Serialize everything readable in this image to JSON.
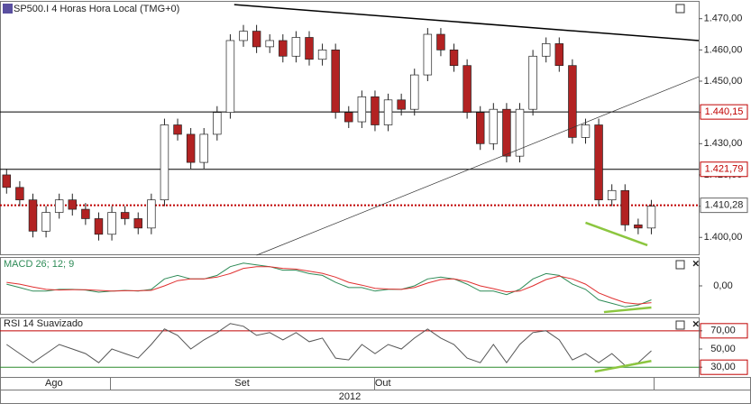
{
  "chart_data": [
    {
      "type": "candlestick",
      "title": "SP500.I 4 Horas Hora Local (TMG+0)",
      "xlim": [
        -0.5,
        52.6
      ],
      "ylim": [
        1394.3,
        1475.4
      ],
      "yticks": [
        {
          "value": 1400,
          "label": "1.400,00"
        },
        {
          "value": 1410,
          "label": "1.410,00"
        },
        {
          "value": 1420,
          "label": "1.420,00"
        },
        {
          "value": 1430,
          "label": "1.430,00"
        },
        {
          "value": 1440,
          "label": "1.440,00"
        },
        {
          "value": 1450,
          "label": "1.450,00"
        },
        {
          "value": 1460,
          "label": "1.460,00"
        },
        {
          "value": 1470,
          "label": "1.470,00"
        }
      ],
      "open": [
        1420,
        1416,
        1412,
        1402,
        1408,
        1412,
        1409,
        1406,
        1401,
        1408,
        1406,
        1403,
        1412,
        1436,
        1433,
        1424,
        1433,
        1440,
        1463,
        1466,
        1461,
        1463,
        1458,
        1464,
        1457,
        1460,
        1440,
        1437,
        1445,
        1436,
        1444,
        1441,
        1452,
        1465,
        1460,
        1455,
        1440,
        1430,
        1441,
        1426,
        1441,
        1458,
        1462,
        1455,
        1432,
        1436,
        1412,
        1415,
        1404,
        1403
      ],
      "high": [
        1422,
        1418,
        1414,
        1410,
        1414,
        1414,
        1411,
        1408,
        1410,
        1410,
        1408,
        1414,
        1438,
        1438,
        1435,
        1435,
        1442,
        1465,
        1468,
        1468,
        1465,
        1465,
        1466,
        1466,
        1462,
        1462,
        1442,
        1447,
        1447,
        1446,
        1446,
        1454,
        1467,
        1467,
        1462,
        1457,
        1442,
        1443,
        1443,
        1443,
        1460,
        1464,
        1464,
        1457,
        1438,
        1438,
        1417,
        1417,
        1406,
        1412
      ],
      "low": [
        1414,
        1410,
        1400,
        1400,
        1406,
        1407,
        1404,
        1399,
        1399,
        1404,
        1401,
        1401,
        1410,
        1431,
        1422,
        1422,
        1431,
        1438,
        1461,
        1459,
        1459,
        1456,
        1456,
        1455,
        1455,
        1438,
        1435,
        1435,
        1434,
        1434,
        1439,
        1439,
        1450,
        1458,
        1453,
        1438,
        1428,
        1428,
        1424,
        1424,
        1439,
        1456,
        1453,
        1430,
        1430,
        1410,
        1410,
        1402,
        1401,
        1401
      ],
      "close": [
        1416,
        1412,
        1402,
        1408,
        1412,
        1409,
        1406,
        1401,
        1408,
        1406,
        1403,
        1412,
        1436,
        1433,
        1424,
        1433,
        1440,
        1463,
        1466,
        1461,
        1463,
        1458,
        1464,
        1457,
        1460,
        1440,
        1437,
        1445,
        1436,
        1444,
        1441,
        1452,
        1465,
        1460,
        1455,
        1440,
        1430,
        1441,
        1426,
        1441,
        1458,
        1462,
        1455,
        1432,
        1436,
        1412,
        1415,
        1404,
        1403,
        1410
      ],
      "up_color": "#ffffff",
      "down_color": "#b22222",
      "levels": [
        {
          "value": 1440.15,
          "label": "1.440,15",
          "color": "#000000",
          "style": "solid"
        },
        {
          "value": 1421.79,
          "label": "1.421,79",
          "color": "#000000",
          "style": "solid"
        },
        {
          "value": 1410.28,
          "label": "1.410,28",
          "color": "#c00000",
          "style": "dotted"
        }
      ],
      "trendlines": [
        {
          "x": [
            17.3,
            52.6
          ],
          "y": [
            1474.5,
            1463.0
          ],
          "color": "#000000",
          "width": 1.5
        },
        {
          "x": [
            19.0,
            52.6
          ],
          "y": [
            1394.3,
            1451.4
          ],
          "color": "#333333",
          "width": 0.7
        },
        {
          "x": [
            44.0,
            48.7
          ],
          "y": [
            1404.7,
            1397.5
          ],
          "color": "#8cc63f",
          "width": 2.5
        }
      ],
      "x_labels": [
        {
          "value": 3.6,
          "label": "Ago"
        },
        {
          "value": 17.9,
          "label": "Set"
        },
        {
          "value": 28.6,
          "label": "Out"
        }
      ],
      "x_title": "2012"
    },
    {
      "type": "line",
      "title": "MACD 26; 12; 9",
      "xlim": [
        -0.5,
        52.6
      ],
      "ylim": [
        -8,
        8
      ],
      "yticks": [
        {
          "value": 0,
          "label": "0,00"
        }
      ],
      "series": [
        {
          "color": "#2e8b57",
          "values": [
            0.5,
            -0.5,
            -1.5,
            -1.5,
            -1,
            -1,
            -1.2,
            -1.8,
            -1.5,
            -1.3,
            -1.5,
            -1,
            2,
            3,
            2,
            2,
            3,
            5.5,
            6.5,
            6,
            5.5,
            4.5,
            4.5,
            3.5,
            3,
            1,
            -0.5,
            -0.5,
            -1.5,
            -1,
            -1,
            0,
            2,
            2.5,
            2,
            0.5,
            -1.5,
            -1.5,
            -2.5,
            -1,
            2,
            3.5,
            3,
            0.5,
            -1,
            -4,
            -5,
            -6,
            -5.5,
            -4
          ]
        },
        {
          "color": "#e03030",
          "values": [
            1,
            0.5,
            -0.3,
            -1,
            -1.2,
            -1.1,
            -1.1,
            -1.3,
            -1.5,
            -1.4,
            -1.4,
            -1.3,
            0,
            1.5,
            2,
            2,
            2.5,
            3.5,
            5,
            5.5,
            5.5,
            5,
            4.8,
            4.2,
            3.6,
            2.5,
            1,
            0.2,
            -0.7,
            -0.9,
            -1,
            -0.5,
            0.8,
            1.8,
            2,
            1.3,
            0,
            -0.8,
            -1.7,
            -1.5,
            0,
            1.8,
            2.8,
            2,
            0.5,
            -2,
            -3.5,
            -4.8,
            -5.2,
            -4.8
          ]
        }
      ],
      "levels": [],
      "trendlines": [
        {
          "x": [
            45.4,
            49.0
          ],
          "y": [
            -7.5,
            -6.2
          ],
          "color": "#8cc63f",
          "width": 2.5
        }
      ]
    },
    {
      "type": "line",
      "title": "RSI 14 Suavizado",
      "xlim": [
        -0.5,
        52.6
      ],
      "ylim": [
        19.3,
        83.7
      ],
      "yticks": [
        {
          "value": 70,
          "label": "70,00"
        },
        {
          "value": 50,
          "label": "50,00"
        },
        {
          "value": 30,
          "label": "30,00"
        }
      ],
      "series": [
        {
          "color": "#555555",
          "values": [
            55,
            45,
            35,
            45,
            55,
            50,
            45,
            35,
            50,
            45,
            40,
            55,
            72,
            65,
            50,
            60,
            68,
            78,
            75,
            65,
            68,
            60,
            68,
            58,
            62,
            40,
            38,
            55,
            45,
            55,
            50,
            62,
            72,
            62,
            55,
            40,
            35,
            55,
            35,
            55,
            68,
            70,
            60,
            38,
            45,
            35,
            45,
            32,
            35,
            48
          ]
        }
      ],
      "levels": [
        {
          "value": 70,
          "color": "#c00000",
          "style": "solid"
        },
        {
          "value": 30,
          "color": "#2e8b2e",
          "style": "solid"
        }
      ],
      "trendlines": [
        {
          "x": [
            44.7,
            49.0
          ],
          "y": [
            25.2,
            36.9
          ],
          "color": "#8cc63f",
          "width": 2.5
        }
      ]
    }
  ]
}
